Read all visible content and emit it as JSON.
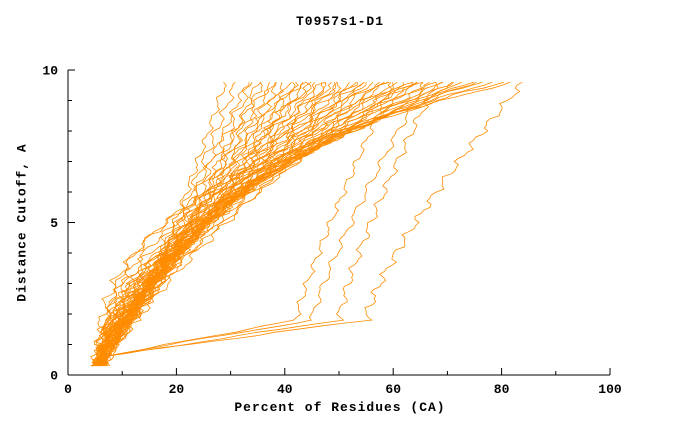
{
  "chart_data": {
    "type": "line",
    "title": "T0957s1-D1",
    "xlabel": "Percent of Residues (CA)",
    "ylabel": "Distance Cutoff, A",
    "xlim": [
      0,
      100
    ],
    "ylim": [
      0,
      10
    ],
    "x_ticks_major": [
      0,
      20,
      40,
      60,
      80,
      100
    ],
    "x_minor_step": 10,
    "y_ticks_major": [
      0,
      5,
      10
    ],
    "y_minor_step": 1,
    "grid": false,
    "legend": "none",
    "line_color": "#FF8C00",
    "axis_color": "#000000",
    "background": "#FFFFFF",
    "y_draw_range": [
      0.3,
      9.6
    ],
    "series_format": [
      "start_x_at_low_cutoff",
      "top_x_at_cutoff_9.6",
      "shape_exponent",
      "wiggle_amp",
      "wiggle_freq",
      "wiggle_phase",
      "optional_low_sweep_x"
    ],
    "series": [
      [
        5.0,
        29,
        0.72,
        0.5,
        9.5,
        0.5
      ],
      [
        5.2,
        31,
        0.8,
        0.6,
        8.4,
        1.2
      ],
      [
        5.1,
        33,
        0.85,
        0.5,
        10.5,
        2.1
      ],
      [
        5.4,
        34,
        0.9,
        0.7,
        7.8,
        0.8
      ],
      [
        5.0,
        35,
        0.78,
        0.5,
        9.0,
        2.9
      ],
      [
        5.6,
        36,
        0.95,
        0.6,
        11.4,
        1.7
      ],
      [
        5.2,
        37,
        0.88,
        0.8,
        7.2,
        3.4
      ],
      [
        5.8,
        38,
        1.0,
        0.5,
        9.3,
        0.3
      ],
      [
        5.3,
        39,
        0.94,
        0.7,
        8.7,
        4.1
      ],
      [
        5.0,
        40,
        1.0,
        0.6,
        10.8,
        1.9
      ],
      [
        6.0,
        41,
        1.05,
        0.5,
        8.1,
        5.0
      ],
      [
        5.5,
        42,
        0.92,
        0.8,
        9.9,
        2.5
      ],
      [
        5.1,
        42,
        1.1,
        0.6,
        7.5,
        0.9
      ],
      [
        6.2,
        43,
        1.0,
        0.7,
        11.7,
        3.8
      ],
      [
        5.4,
        44,
        1.1,
        0.5,
        9.0,
        1.4
      ],
      [
        5.7,
        45,
        1.05,
        0.9,
        7.8,
        4.6
      ],
      [
        5.2,
        45,
        1.2,
        0.6,
        10.2,
        2.2
      ],
      [
        6.4,
        46,
        1.1,
        0.5,
        8.4,
        5.5
      ],
      [
        5.5,
        47,
        1.15,
        0.7,
        11.1,
        0.6
      ],
      [
        5.0,
        48,
        1.08,
        0.6,
        9.3,
        3.0
      ],
      [
        6.1,
        48,
        1.25,
        0.8,
        7.5,
        1.8
      ],
      [
        5.6,
        49,
        1.2,
        0.5,
        10.5,
        4.3
      ],
      [
        5.3,
        50,
        1.15,
        0.7,
        8.7,
        2.7
      ],
      [
        6.6,
        50,
        1.3,
        0.6,
        9.6,
        0.2
      ],
      [
        5.8,
        51,
        1.2,
        0.9,
        7.8,
        5.2
      ],
      [
        5.2,
        52,
        1.25,
        0.5,
        11.4,
        1.1
      ],
      [
        6.0,
        53,
        1.3,
        0.7,
        9.0,
        3.6
      ],
      [
        5.5,
        53,
        1.12,
        0.6,
        8.1,
        4.9
      ],
      [
        6.8,
        54,
        1.35,
        0.8,
        9.9,
        2.0
      ],
      [
        5.4,
        55,
        1.25,
        0.5,
        8.7,
        0.7
      ],
      [
        5.9,
        55,
        1.4,
        0.7,
        10.8,
        3.2
      ],
      [
        5.1,
        56,
        1.3,
        0.6,
        7.5,
        5.7
      ],
      [
        6.3,
        57,
        1.35,
        0.9,
        9.3,
        1.5
      ],
      [
        5.6,
        58,
        1.4,
        0.5,
        10.2,
        4.0
      ],
      [
        7.0,
        58,
        1.22,
        0.7,
        8.4,
        2.4
      ],
      [
        5.3,
        59,
        1.45,
        0.6,
        11.1,
        0.4
      ],
      [
        5.8,
        60,
        1.4,
        0.8,
        7.8,
        3.9
      ],
      [
        6.5,
        60,
        1.15,
        0.5,
        9.6,
        1.0,
        42
      ],
      [
        5.5,
        61,
        1.45,
        0.7,
        9.0,
        5.4
      ],
      [
        6.0,
        62,
        1.5,
        0.6,
        10.5,
        2.8
      ],
      [
        5.2,
        63,
        1.55,
        0.9,
        8.1,
        0.1
      ],
      [
        6.7,
        63,
        1.38,
        0.5,
        11.4,
        4.4
      ],
      [
        5.7,
        64,
        1.6,
        0.7,
        9.3,
        1.6
      ],
      [
        5.4,
        65,
        1.48,
        0.6,
        8.7,
        3.5
      ],
      [
        6.2,
        65,
        1.7,
        0.8,
        9.9,
        5.8
      ],
      [
        5.9,
        66,
        1.2,
        0.5,
        7.5,
        2.3,
        45
      ],
      [
        5.5,
        67,
        1.65,
        0.7,
        10.8,
        0.9
      ],
      [
        6.9,
        68,
        1.25,
        0.6,
        9.0,
        4.7,
        50
      ],
      [
        5.6,
        68,
        1.8,
        0.9,
        8.4,
        1.3
      ],
      [
        6.1,
        69,
        1.75,
        0.5,
        10.2,
        3.1
      ],
      [
        5.8,
        70,
        1.8,
        0.7,
        7.8,
        5.6
      ],
      [
        6.4,
        71,
        1.85,
        0.6,
        11.1,
        2.6
      ],
      [
        5.5,
        72,
        1.9,
        0.8,
        9.6,
        0.5
      ],
      [
        6.0,
        73,
        1.95,
        0.5,
        8.7,
        4.2
      ],
      [
        5.7,
        74,
        2.0,
        0.7,
        10.5,
        1.8
      ],
      [
        6.6,
        75,
        2.1,
        0.6,
        9.0,
        3.7
      ],
      [
        5.9,
        76,
        2.2,
        0.9,
        8.1,
        5.1
      ],
      [
        6.2,
        78,
        2.4,
        0.6,
        9.9,
        2.2
      ],
      [
        5.6,
        80,
        2.6,
        0.8,
        9.3,
        0.8
      ],
      [
        6.8,
        82,
        2.8,
        0.5,
        8.4,
        4.5
      ],
      [
        6.0,
        84,
        1.3,
        0.7,
        10.2,
        1.9,
        55
      ]
    ]
  }
}
